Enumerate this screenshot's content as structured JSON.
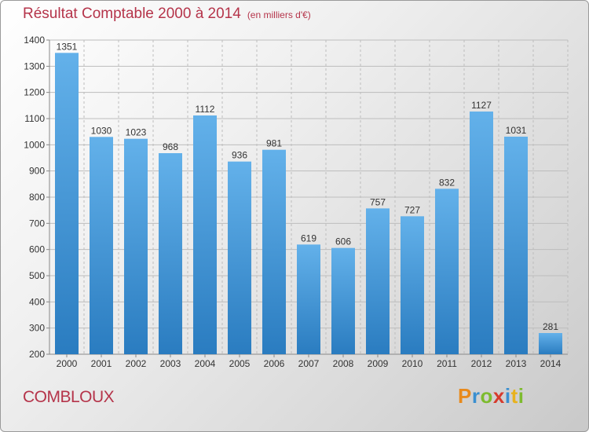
{
  "title": {
    "main": "Résultat Comptable 2000 à 2014",
    "unit": "(en milliers d'€)"
  },
  "commune": "COMBLOUX",
  "logo": {
    "letters": [
      "P",
      "r",
      "o",
      "x",
      "i",
      "t",
      "i"
    ],
    "colors": [
      "#e88a1c",
      "#3a8fd0",
      "#7dbb2e",
      "#d63a2c",
      "#3a8fd0",
      "#e8b21c",
      "#7dbb2e"
    ]
  },
  "colors": {
    "title": "#b5344a",
    "bar_light": "#63b1ea",
    "bar_dark": "#2a7cc0",
    "grid": "#bdbdbd"
  },
  "chart_data": {
    "type": "bar",
    "categories": [
      "2000",
      "2001",
      "2002",
      "2003",
      "2004",
      "2005",
      "2006",
      "2007",
      "2008",
      "2009",
      "2010",
      "2011",
      "2012",
      "2013",
      "2014"
    ],
    "values": [
      1351,
      1030,
      1023,
      968,
      1112,
      936,
      981,
      619,
      606,
      757,
      727,
      832,
      1127,
      1031,
      281
    ],
    "title": "Résultat Comptable 2000 à 2014",
    "xlabel": "",
    "ylabel": "",
    "ylim": [
      200,
      1400
    ],
    "yticks": [
      200,
      300,
      400,
      500,
      600,
      700,
      800,
      900,
      1000,
      1100,
      1200,
      1300,
      1400
    ],
    "grid": true,
    "data_labels": true
  }
}
